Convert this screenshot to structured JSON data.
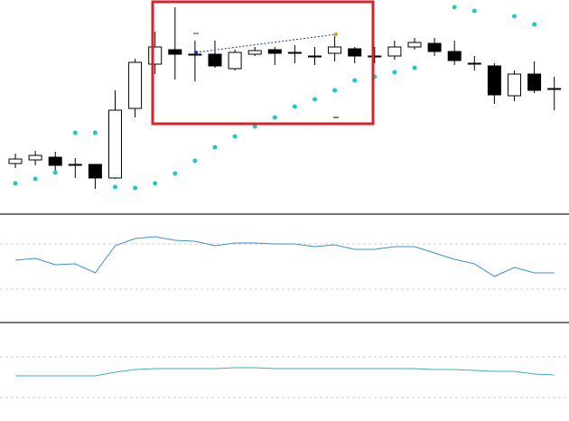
{
  "chart_data": [
    {
      "type": "candlestick",
      "categories": [
        null,
        null,
        null,
        null,
        null,
        null,
        null,
        null,
        null,
        null,
        null,
        null,
        null,
        null,
        null,
        null,
        null,
        null,
        null,
        null,
        null,
        null,
        null,
        null,
        null,
        null,
        null,
        null
      ],
      "open": [
        56,
        60,
        63,
        55,
        55,
        40,
        117,
        166,
        182,
        177,
        177,
        161,
        177,
        182,
        179,
        175,
        178,
        183,
        175,
        175,
        185,
        189,
        180,
        167,
        164,
        131,
        155,
        139
      ],
      "high": [
        67,
        70,
        69,
        62,
        55,
        137,
        172,
        202,
        229,
        192,
        192,
        182,
        185,
        185,
        187,
        185,
        197,
        185,
        185,
        192,
        195,
        195,
        192,
        175,
        167,
        159,
        169,
        152
      ],
      "low": [
        51,
        54,
        47,
        40,
        28,
        39,
        107,
        155,
        149,
        147,
        162,
        159,
        175,
        165,
        167,
        165,
        169,
        167,
        167,
        171,
        182,
        175,
        165,
        159,
        122,
        125,
        134,
        115
      ],
      "close": [
        61,
        65,
        54,
        54,
        40,
        115,
        168,
        185,
        177,
        176,
        164,
        179,
        181,
        178,
        178,
        175,
        185,
        175,
        175,
        185,
        190,
        180,
        170,
        167,
        132,
        155,
        137,
        139
      ],
      "up_color": "#ffffff",
      "down_color": "#000000",
      "sar": {
        "color": "#1ec8c8",
        "values": [
          34,
          39,
          46,
          90,
          90,
          30,
          29,
          34,
          45,
          59,
          74,
          86,
          97,
          107,
          119,
          127,
          137,
          148,
          152,
          157,
          162,
          null,
          229,
          225,
          null,
          219,
          210,
          null
        ]
      },
      "ylim": [
        0,
        237
      ]
    },
    {
      "type": "line",
      "color": "#3a8fd8",
      "categories": [
        null,
        null,
        null,
        null,
        null,
        null,
        null,
        null,
        null,
        null,
        null,
        null,
        null,
        null,
        null,
        null,
        null,
        null,
        null,
        null,
        null,
        null,
        null,
        null,
        null,
        null,
        null,
        null
      ],
      "values": [
        68,
        70,
        63,
        64,
        54,
        84,
        92,
        94,
        90,
        89,
        84,
        87,
        87,
        86,
        86,
        83,
        85,
        80,
        80,
        83,
        83,
        76,
        69,
        64,
        50,
        60,
        54,
        54
      ],
      "ylim": [
        0,
        118
      ],
      "hlines": [
        86,
        36
      ]
    },
    {
      "type": "line",
      "color": "#3ab0c8",
      "categories": [
        null,
        null,
        null,
        null,
        null,
        null,
        null,
        null,
        null,
        null,
        null,
        null,
        null,
        null,
        null,
        null,
        null,
        null,
        null,
        null,
        null,
        null,
        null,
        null,
        null,
        null,
        null,
        null
      ],
      "values": [
        50,
        50,
        50,
        50,
        50,
        54,
        57,
        58,
        58,
        58,
        58,
        59,
        59,
        58,
        58,
        58,
        58,
        58,
        58,
        58,
        58,
        57,
        57,
        56,
        55,
        55,
        52,
        51
      ],
      "ylim": [
        0,
        108
      ],
      "hlines": [
        71,
        26
      ]
    }
  ]
}
